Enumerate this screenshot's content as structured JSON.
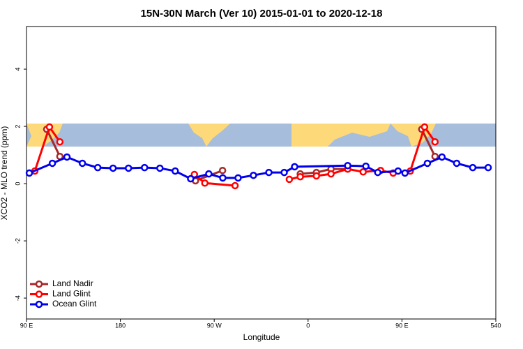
{
  "chart_data": {
    "type": "line",
    "title": "15N-30N March (Ver 10)   2015-01-01 to 2020-12-18",
    "xlabel": "Longitude",
    "ylabel": "XCO2 - MLO trend (ppm)",
    "xlim": [
      90,
      540
    ],
    "ylim": [
      -4.73,
      5.49
    ],
    "xticks": [
      {
        "value": 90,
        "label": "90 E"
      },
      180,
      {
        "value": 270,
        "label": "90 W"
      },
      {
        "value": 360,
        "label": "0"
      },
      {
        "value": 450,
        "label": "90 E"
      },
      540
    ],
    "yticks": [
      -4,
      -2,
      0,
      2,
      4
    ],
    "legend": "bottom-left",
    "series": [
      {
        "name": "Land Nadir",
        "color": "#a52a2a",
        "x": [
          109.4,
          122,
          200,
          252,
          278,
          300,
          352.5,
          368,
          382,
          398,
          430,
          469,
          481.7
        ],
        "values": [
          1.9,
          0.95,
          null,
          0.1,
          0.46,
          null,
          0.34,
          0.39,
          0.51,
          0.51,
          null,
          1.9,
          0.95
        ]
      },
      {
        "name": "Land Glint",
        "color": "#ff0000",
        "x": [
          98,
          112,
          122,
          200,
          251,
          261,
          290,
          320,
          342,
          352.5,
          368,
          382,
          398,
          412.8,
          429.5,
          441.6,
          458,
          471.7,
          481.7
        ],
        "values": [
          0.44,
          1.98,
          1.46,
          null,
          0.32,
          0.02,
          -0.07,
          null,
          0.15,
          0.24,
          0.27,
          0.34,
          0.51,
          0.41,
          0.46,
          0.37,
          0.44,
          1.98,
          1.46
        ]
      },
      {
        "name": "Ocean Glint",
        "color": "#0000ee",
        "x": [
          92.7,
          114.8,
          128.8,
          143.6,
          158.3,
          173,
          187.8,
          203.2,
          217.9,
          232.6,
          247.4,
          264.8,
          278.2,
          292.9,
          307.6,
          322.4,
          337.1,
          347.1,
          398,
          415.4,
          426.8,
          446.3,
          452.9,
          474.4,
          488.4,
          502.5,
          517.9,
          532.7
        ],
        "values": [
          0.37,
          0.71,
          0.93,
          0.71,
          0.56,
          0.54,
          0.54,
          0.56,
          0.54,
          0.44,
          0.17,
          0.34,
          0.2,
          0.2,
          0.29,
          0.39,
          0.39,
          0.59,
          0.63,
          0.61,
          0.39,
          0.44,
          0.37,
          0.71,
          0.93,
          0.71,
          0.56,
          0.56
        ]
      }
    ]
  }
}
